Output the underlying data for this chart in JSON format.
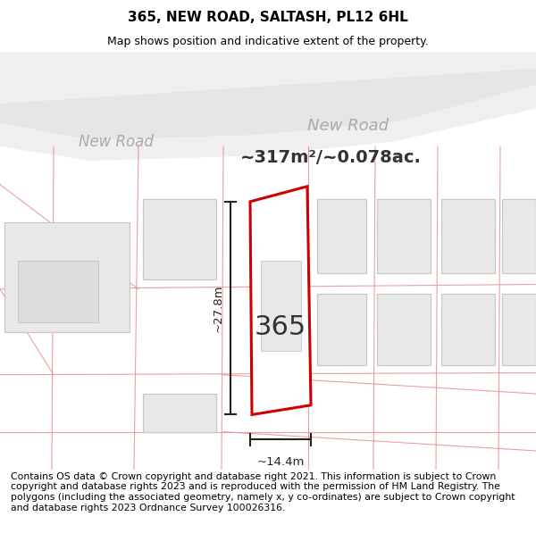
{
  "title": "365, NEW ROAD, SALTASH, PL12 6HL",
  "subtitle": "Map shows position and indicative extent of the property.",
  "area_text": "~317m²/~0.078ac.",
  "label_365": "365",
  "width_label": "~14.4m",
  "height_label": "~27.8m",
  "road_label_left": "New Road",
  "road_label_right": "New Road",
  "footer": "Contains OS data © Crown copyright and database right 2021. This information is subject to Crown copyright and database rights 2023 and is reproduced with the permission of HM Land Registry. The polygons (including the associated geometry, namely x, y co-ordinates) are subject to Crown copyright and database rights 2023 Ordnance Survey 100026316.",
  "bg_color": "#ffffff",
  "map_bg": "#f8f8f8",
  "highlight_color": "#cc0000",
  "neighbour_fc": "#e8e8e8",
  "neighbour_ec": "#c8c8c8",
  "cad_line_color": "#f0a0a0",
  "road_band_color": "#eeeeee",
  "title_fontsize": 11,
  "subtitle_fontsize": 9,
  "footer_fontsize": 7.8,
  "road_label_color": "#aaaaaa",
  "dim_color": "#222222",
  "label_color": "#333333",
  "area_fontsize": 14,
  "road_fontsize": 12
}
